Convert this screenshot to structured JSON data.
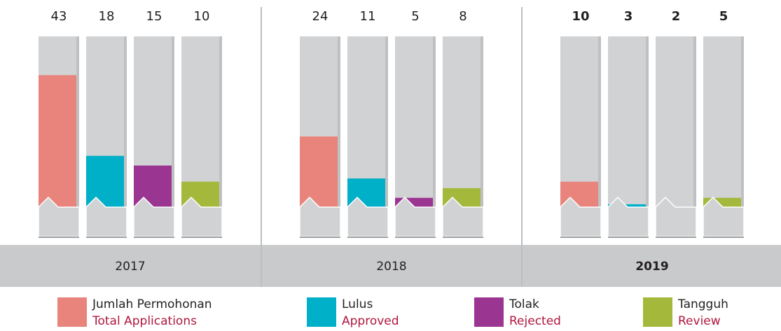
{
  "chart_data": {
    "type": "bar",
    "categories": [
      "2017",
      "2018",
      "2019"
    ],
    "highlight_category": 2,
    "series": [
      {
        "name": "Jumlah Permohonan",
        "name_en": "Total Applications",
        "color": "#e8847c",
        "values": [
          43,
          24,
          10
        ]
      },
      {
        "name": "Lulus",
        "name_en": "Approved",
        "color": "#00afc8",
        "values": [
          18,
          11,
          3
        ]
      },
      {
        "name": "Tolak",
        "name_en": "Rejected",
        "color": "#9b3592",
        "values": [
          15,
          5,
          2
        ]
      },
      {
        "name": "Tangguh",
        "name_en": "Review",
        "color": "#a4b83c",
        "values": [
          10,
          8,
          5
        ]
      }
    ],
    "ylim": [
      -2,
      55
    ]
  }
}
